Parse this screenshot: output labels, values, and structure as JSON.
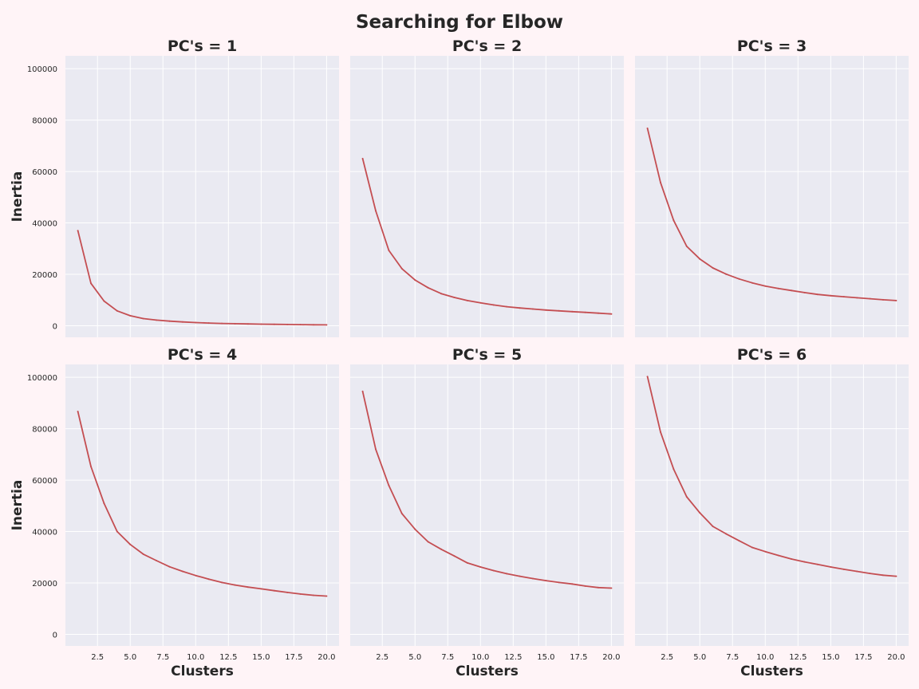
{
  "figure": {
    "title": "Searching for Elbow",
    "background": "#fff4f7",
    "axes_background": "#eaeaf2",
    "grid_color": "#ffffff",
    "line_color": "#c44e52"
  },
  "chart_data": [
    {
      "type": "line",
      "title": "PC's = 1",
      "xlabel": "",
      "ylabel": "Inertia",
      "xlim": [
        0.05,
        20.95
      ],
      "ylim": [
        -4500,
        105000
      ],
      "xticks": [],
      "yticks": [
        0,
        20000,
        40000,
        60000,
        80000,
        100000
      ],
      "grid": true,
      "x": [
        1,
        2,
        3,
        4,
        5,
        6,
        7,
        8,
        9,
        10,
        11,
        12,
        13,
        14,
        15,
        16,
        17,
        18,
        19,
        20
      ],
      "series": [
        {
          "values": [
            37000,
            16500,
            9600,
            5800,
            3900,
            2800,
            2200,
            1800,
            1500,
            1250,
            1050,
            900,
            800,
            700,
            620,
            550,
            480,
            420,
            370,
            330
          ]
        }
      ]
    },
    {
      "type": "line",
      "title": "PC's = 2",
      "xlabel": "",
      "ylabel": "",
      "xlim": [
        0.05,
        20.95
      ],
      "ylim": [
        -4500,
        105000
      ],
      "xticks": [],
      "yticks": [],
      "grid": true,
      "x": [
        1,
        2,
        3,
        4,
        5,
        6,
        7,
        8,
        9,
        10,
        11,
        12,
        13,
        14,
        15,
        16,
        17,
        18,
        19,
        20
      ],
      "series": [
        {
          "values": [
            65000,
            44700,
            29300,
            22200,
            17800,
            14800,
            12500,
            11000,
            9800,
            8900,
            8100,
            7400,
            6900,
            6500,
            6100,
            5800,
            5500,
            5200,
            4900,
            4600
          ]
        }
      ]
    },
    {
      "type": "line",
      "title": "PC's = 3",
      "xlabel": "",
      "ylabel": "",
      "xlim": [
        0.05,
        20.95
      ],
      "ylim": [
        -4500,
        105000
      ],
      "xticks": [],
      "yticks": [],
      "grid": true,
      "x": [
        1,
        2,
        3,
        4,
        5,
        6,
        7,
        8,
        9,
        10,
        11,
        12,
        13,
        14,
        15,
        16,
        17,
        18,
        19,
        20
      ],
      "series": [
        {
          "values": [
            76800,
            55700,
            41000,
            30900,
            26000,
            22500,
            20100,
            18200,
            16700,
            15400,
            14500,
            13700,
            12900,
            12200,
            11700,
            11300,
            10900,
            10500,
            10100,
            9800
          ]
        }
      ]
    },
    {
      "type": "line",
      "title": "PC's = 4",
      "xlabel": "Clusters",
      "ylabel": "Inertia",
      "xlim": [
        0.05,
        20.95
      ],
      "ylim": [
        -4500,
        105000
      ],
      "xticks": [
        "2.5",
        "5.0",
        "7.5",
        "10.0",
        "12.5",
        "15.0",
        "17.5",
        "20.0"
      ],
      "yticks": [
        0,
        20000,
        40000,
        60000,
        80000,
        100000
      ],
      "grid": true,
      "x": [
        1,
        2,
        3,
        4,
        5,
        6,
        7,
        8,
        9,
        10,
        11,
        12,
        13,
        14,
        15,
        16,
        17,
        18,
        19,
        20
      ],
      "series": [
        {
          "values": [
            86700,
            65300,
            51000,
            40000,
            35000,
            31200,
            28700,
            26300,
            24500,
            22900,
            21500,
            20200,
            19200,
            18400,
            17700,
            17000,
            16300,
            15700,
            15200,
            14900
          ]
        }
      ]
    },
    {
      "type": "line",
      "title": "PC's = 5",
      "xlabel": "Clusters",
      "ylabel": "",
      "xlim": [
        0.05,
        20.95
      ],
      "ylim": [
        -4500,
        105000
      ],
      "xticks": [
        "2.5",
        "5.0",
        "7.5",
        "10.0",
        "12.5",
        "15.0",
        "17.5",
        "20.0"
      ],
      "yticks": [],
      "grid": true,
      "x": [
        1,
        2,
        3,
        4,
        5,
        6,
        7,
        8,
        9,
        10,
        11,
        12,
        13,
        14,
        15,
        16,
        17,
        18,
        19,
        20
      ],
      "series": [
        {
          "values": [
            94500,
            72000,
            57900,
            47000,
            40900,
            36000,
            33100,
            30500,
            27800,
            26200,
            24800,
            23600,
            22600,
            21700,
            20900,
            20200,
            19600,
            18800,
            18200,
            18000
          ]
        }
      ]
    },
    {
      "type": "line",
      "title": "PC's = 6",
      "xlabel": "Clusters",
      "ylabel": "",
      "xlim": [
        0.05,
        20.95
      ],
      "ylim": [
        -4500,
        105000
      ],
      "xticks": [
        "2.5",
        "5.0",
        "7.5",
        "10.0",
        "12.5",
        "15.0",
        "17.5",
        "20.0"
      ],
      "yticks": [],
      "grid": true,
      "x": [
        1,
        2,
        3,
        4,
        5,
        6,
        7,
        8,
        9,
        10,
        11,
        12,
        13,
        14,
        15,
        16,
        17,
        18,
        19,
        20
      ],
      "series": [
        {
          "values": [
            100300,
            78700,
            64300,
            53500,
            47300,
            42000,
            39100,
            36400,
            33800,
            32200,
            30700,
            29300,
            28200,
            27200,
            26200,
            25300,
            24500,
            23700,
            23000,
            22600
          ]
        }
      ]
    }
  ]
}
